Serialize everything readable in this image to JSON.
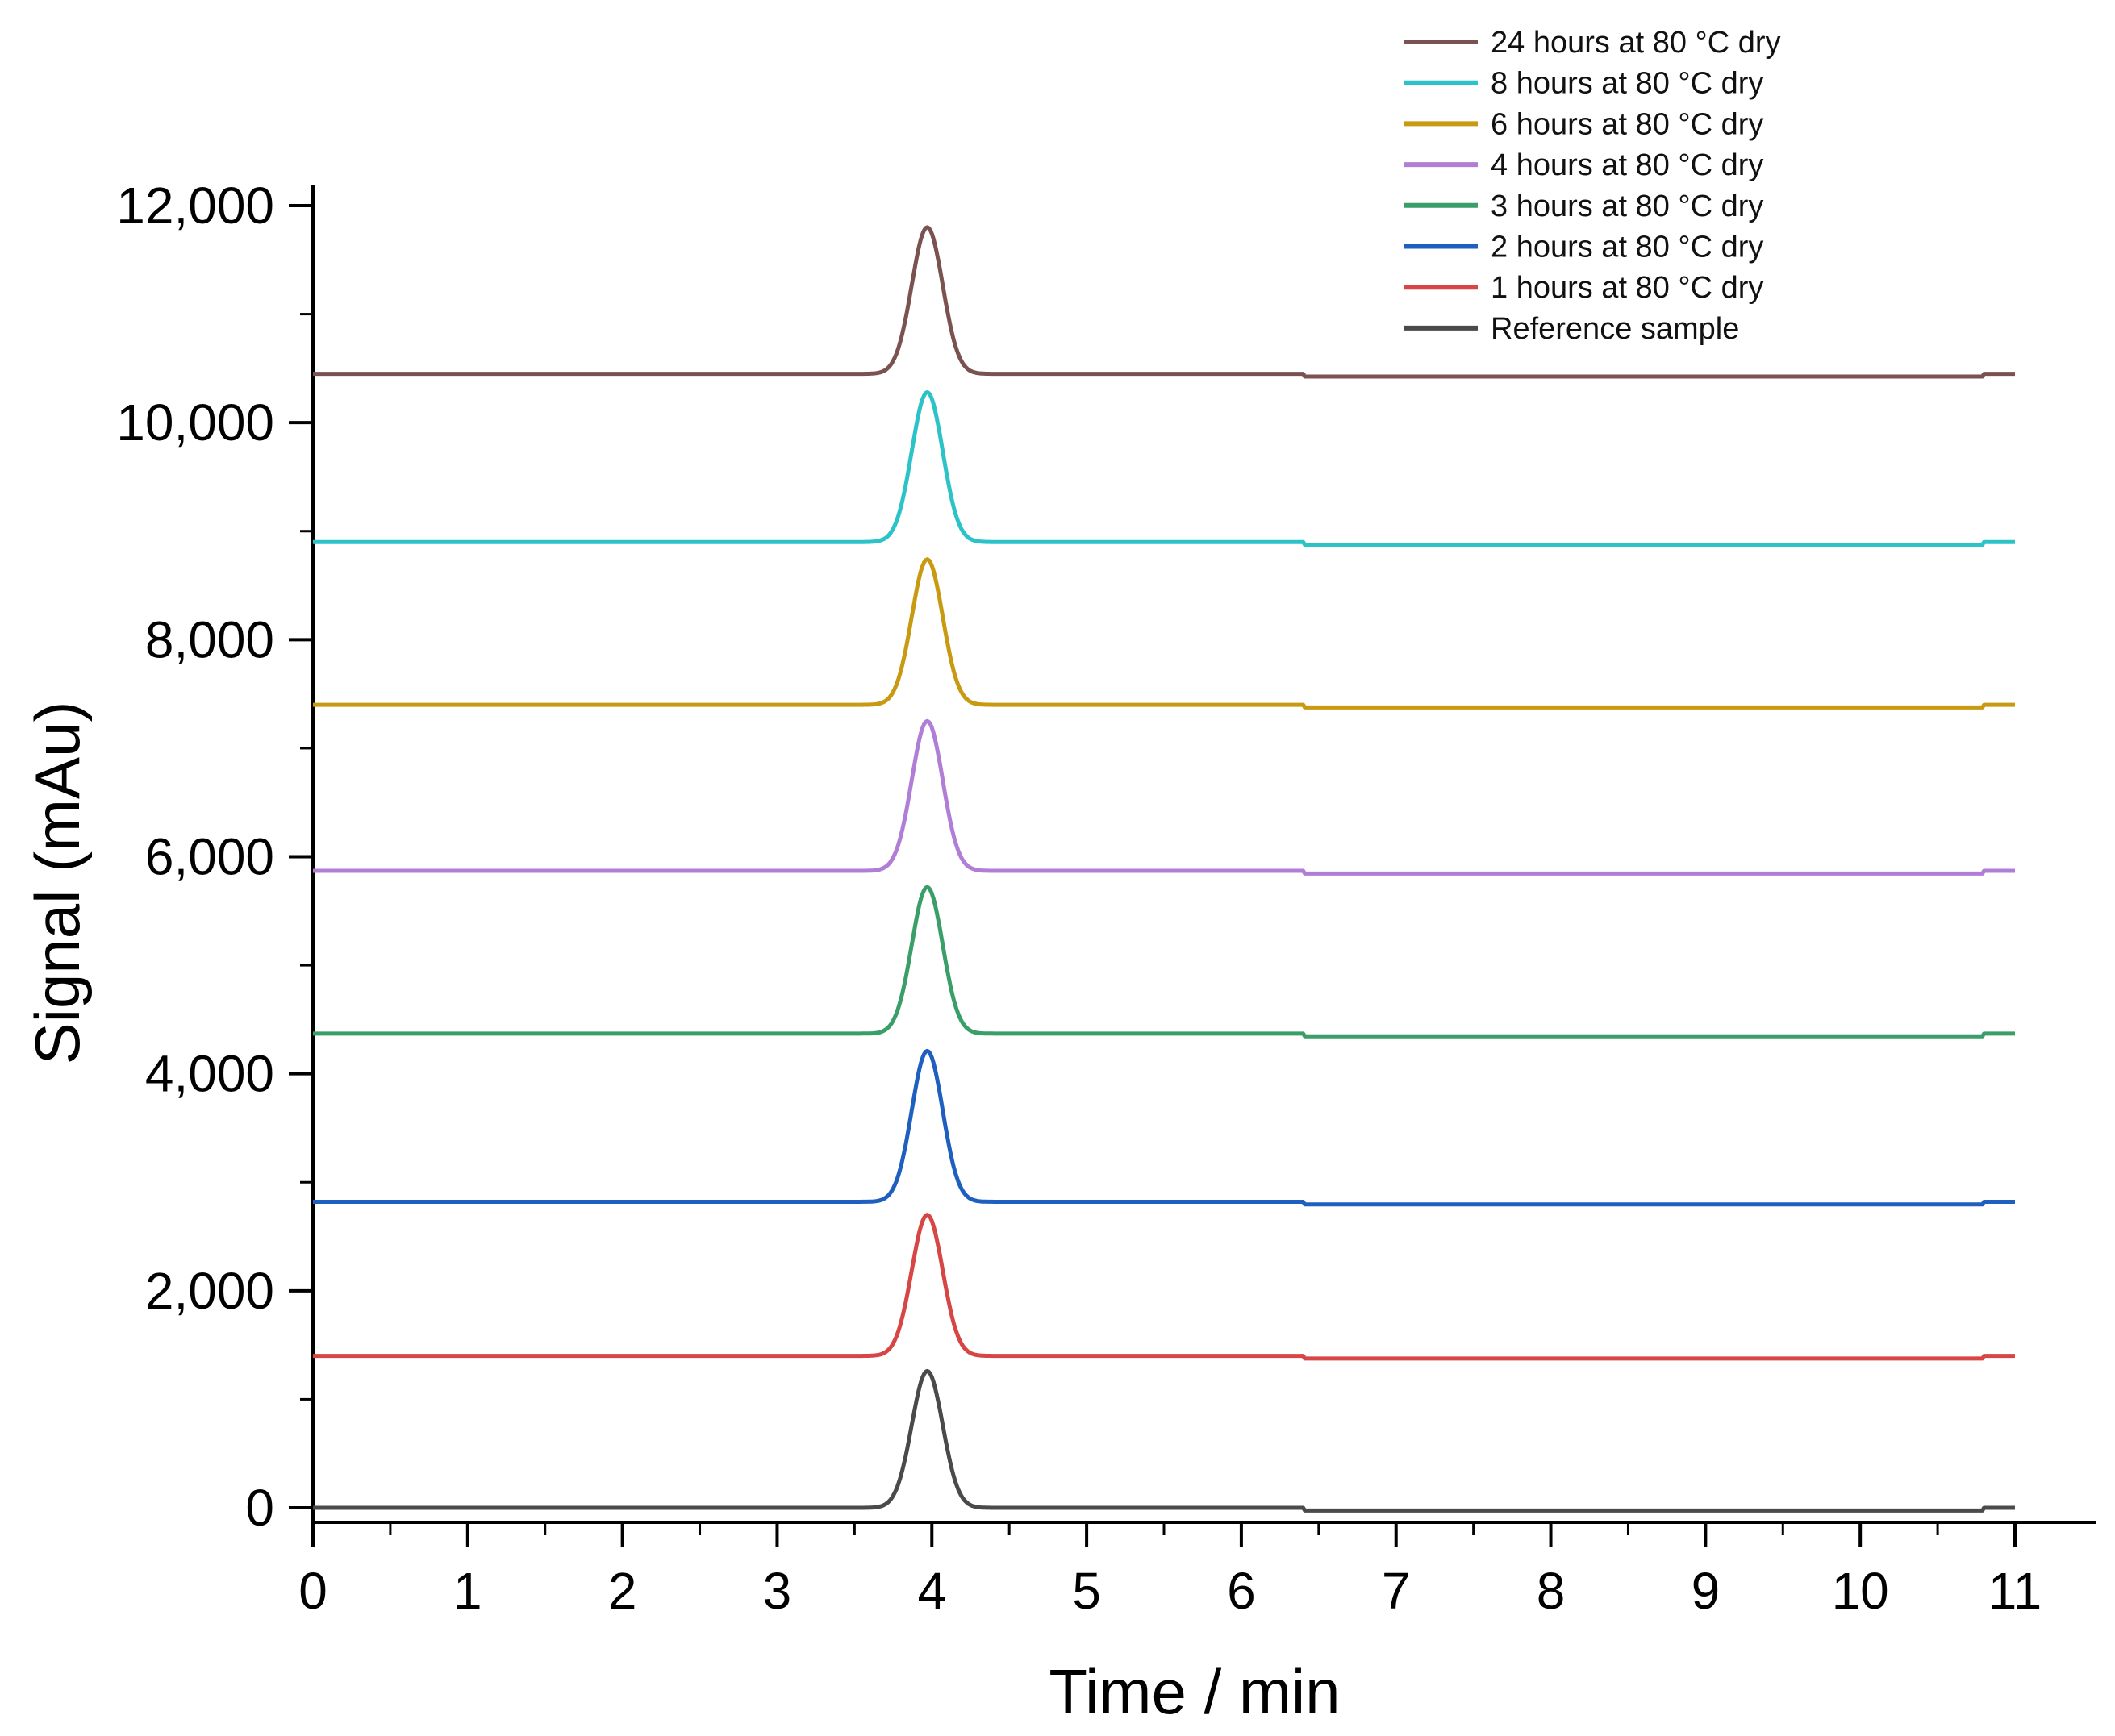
{
  "chart_data": {
    "type": "line",
    "title": "",
    "xlabel": "Time / min",
    "ylabel": "Signal (mAu)",
    "xlim": [
      0,
      11
    ],
    "ylim": [
      0,
      12000
    ],
    "x_ticks": [
      0,
      1,
      2,
      3,
      4,
      5,
      6,
      7,
      8,
      9,
      10,
      11
    ],
    "x_tick_labels": [
      "0",
      "1",
      "2",
      "3",
      "4",
      "5",
      "6",
      "7",
      "8",
      "9",
      "10",
      "11"
    ],
    "y_ticks": [
      0,
      2000,
      4000,
      6000,
      8000,
      10000,
      12000
    ],
    "y_tick_labels": [
      "0",
      "2,000",
      "4,000",
      "6,000",
      "8,000",
      "10,000",
      "12,000"
    ],
    "grid": false,
    "legend_position": "top-right",
    "peak": {
      "retention_time": 3.97,
      "sigma": 0.1
    },
    "series": [
      {
        "name": "24 hours at 80 °C dry",
        "color": "#7a5250",
        "baseline": 10450,
        "peak_height": 1350
      },
      {
        "name": "8 hours at 80 °C dry",
        "color": "#2cc3c8",
        "baseline": 8900,
        "peak_height": 1380
      },
      {
        "name": "6 hours at 80 °C dry",
        "color": "#c79a12",
        "baseline": 7400,
        "peak_height": 1340
      },
      {
        "name": "4 hours at 80 °C dry",
        "color": "#b07ed6",
        "baseline": 5870,
        "peak_height": 1380
      },
      {
        "name": "3 hours at 80 °C dry",
        "color": "#3a9e68",
        "baseline": 4370,
        "peak_height": 1350
      },
      {
        "name": "2 hours at 80 °C dry",
        "color": "#1f5fbf",
        "baseline": 2820,
        "peak_height": 1390
      },
      {
        "name": "1 hours at 80 °C dry",
        "color": "#d84545",
        "baseline": 1400,
        "peak_height": 1300
      },
      {
        "name": "Reference sample",
        "color": "#4a4a4a",
        "baseline": 0,
        "peak_height": 1260
      }
    ]
  }
}
